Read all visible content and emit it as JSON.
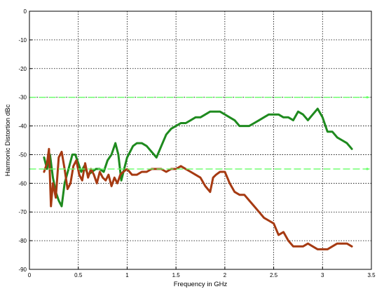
{
  "chart_data": {
    "type": "line",
    "title": "",
    "xlabel": "Frequency in GHz",
    "ylabel": "Harmonic Distortion dBc",
    "xlim": [
      0,
      3.5
    ],
    "ylim": [
      -90,
      0
    ],
    "xticks": [
      "0",
      "0.5",
      "1",
      "1.5",
      "2",
      "2.5",
      "3",
      "3.5"
    ],
    "yticks": [
      "0",
      "-10",
      "-20",
      "-30",
      "-40",
      "-50",
      "-60",
      "-70",
      "-80",
      "-90"
    ],
    "grid": true,
    "colors": {
      "green_trace": "#1e8a1e",
      "brown_trace": "#a63a12",
      "limit_lines": "#66ff66",
      "grid": "#000000"
    },
    "series": [
      {
        "color": "#1e8a1e",
        "style": "solid",
        "x": [
          0.15,
          0.18,
          0.21,
          0.24,
          0.27,
          0.3,
          0.33,
          0.36,
          0.4,
          0.44,
          0.47,
          0.5,
          0.53,
          0.56,
          0.6,
          0.64,
          0.68,
          0.72,
          0.76,
          0.8,
          0.84,
          0.88,
          0.91,
          0.94,
          0.97,
          1.0,
          1.03,
          1.06,
          1.1,
          1.15,
          1.2,
          1.25,
          1.3,
          1.35,
          1.4,
          1.45,
          1.5,
          1.55,
          1.6,
          1.65,
          1.7,
          1.75,
          1.8,
          1.85,
          1.9,
          1.95,
          2.0,
          2.05,
          2.1,
          2.15,
          2.2,
          2.25,
          2.3,
          2.35,
          2.4,
          2.45,
          2.5,
          2.55,
          2.6,
          2.65,
          2.7,
          2.75,
          2.8,
          2.85,
          2.9,
          2.95,
          3.0,
          3.05,
          3.1,
          3.15,
          3.2,
          3.25,
          3.3
        ],
        "y": [
          -51,
          -55,
          -50,
          -58,
          -63,
          -66,
          -68,
          -60,
          -55,
          -50,
          -50,
          -53,
          -56,
          -54,
          -57,
          -56,
          -55,
          -55,
          -56,
          -52,
          -50,
          -46,
          -50,
          -59,
          -55,
          -51,
          -49,
          -47,
          -46,
          -46,
          -47,
          -49,
          -51,
          -47,
          -43,
          -41,
          -40,
          -39,
          -39,
          -38,
          -37,
          -37,
          -36,
          -35,
          -35,
          -35,
          -36,
          -37,
          -38,
          -40,
          -40,
          -40,
          -39,
          -38,
          -37,
          -36,
          -36,
          -36,
          -37,
          -37,
          -38,
          -35,
          -36,
          -38,
          -36,
          -34,
          -37,
          -42,
          -42,
          -44,
          -45,
          -46,
          -48
        ]
      },
      {
        "color": "#a63a12",
        "style": "solid",
        "x": [
          0.15,
          0.18,
          0.2,
          0.22,
          0.24,
          0.27,
          0.3,
          0.33,
          0.36,
          0.39,
          0.42,
          0.45,
          0.48,
          0.51,
          0.54,
          0.57,
          0.6,
          0.63,
          0.66,
          0.69,
          0.72,
          0.75,
          0.78,
          0.81,
          0.84,
          0.87,
          0.9,
          0.93,
          0.96,
          1.0,
          1.05,
          1.1,
          1.15,
          1.2,
          1.25,
          1.3,
          1.35,
          1.4,
          1.45,
          1.5,
          1.55,
          1.6,
          1.65,
          1.7,
          1.75,
          1.8,
          1.85,
          1.88,
          1.91,
          1.95,
          2.0,
          2.05,
          2.1,
          2.15,
          2.2,
          2.25,
          2.3,
          2.35,
          2.4,
          2.45,
          2.5,
          2.55,
          2.6,
          2.65,
          2.7,
          2.75,
          2.8,
          2.85,
          2.9,
          2.95,
          3.0,
          3.05,
          3.1,
          3.15,
          3.2,
          3.25,
          3.3
        ],
        "y": [
          -56,
          -53,
          -48,
          -68,
          -60,
          -65,
          -51,
          -49,
          -55,
          -62,
          -60,
          -54,
          -52,
          -57,
          -59,
          -53,
          -58,
          -55,
          -57,
          -60,
          -56,
          -58,
          -59,
          -57,
          -61,
          -58,
          -60,
          -57,
          -56,
          -55,
          -57,
          -57,
          -56,
          -56,
          -55,
          -55,
          -55,
          -56,
          -55,
          -55,
          -54,
          -55,
          -56,
          -57,
          -58,
          -61,
          -63,
          -58,
          -57,
          -56,
          -56,
          -60,
          -63,
          -64,
          -64,
          -66,
          -68,
          -70,
          -72,
          -73,
          -74,
          -78,
          -77,
          -80,
          -82,
          -82,
          -82,
          -81,
          -82,
          -83,
          -83,
          -83,
          -82,
          -81,
          -81,
          -81,
          -82
        ]
      },
      {
        "color": "#66ff66",
        "style": "dashed",
        "x": [
          0,
          3.5
        ],
        "y": [
          -30,
          -30
        ]
      },
      {
        "color": "#66ff66",
        "style": "dashed",
        "x": [
          0,
          3.5
        ],
        "y": [
          -55,
          -55
        ]
      }
    ]
  }
}
